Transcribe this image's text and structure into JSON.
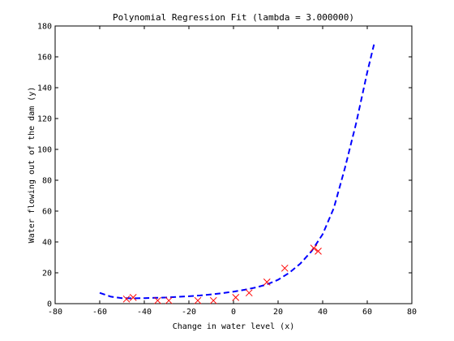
{
  "chart_data": {
    "type": "scatter",
    "title": "Polynomial Regression Fit (lambda = 3.000000)",
    "xlabel": "Change in water level (x)",
    "ylabel": "Water flowing out of the dam (y)",
    "xlim": [
      -80,
      80
    ],
    "ylim": [
      0,
      180
    ],
    "xticks": [
      -80,
      -60,
      -40,
      -20,
      0,
      20,
      40,
      60,
      80
    ],
    "yticks": [
      0,
      20,
      40,
      60,
      80,
      100,
      120,
      140,
      160,
      180
    ],
    "grid": false,
    "series": [
      {
        "kind": "scatter",
        "marker": "x",
        "color": "#ff0000",
        "x": [
          -48,
          -45,
          -34,
          -29,
          -16,
          -9,
          1,
          7,
          15,
          23,
          36,
          38
        ],
        "y": [
          3,
          4,
          2,
          2,
          2,
          2,
          4,
          7,
          14,
          23,
          36,
          34
        ]
      },
      {
        "kind": "line",
        "style": "dashed",
        "color": "#0000ff",
        "x": [
          -60,
          -55,
          -50,
          -45,
          -40,
          -35,
          -30,
          -25,
          -20,
          -15,
          -10,
          -5,
          0,
          5,
          10,
          15,
          20,
          25,
          30,
          35,
          40,
          45,
          50,
          55,
          60,
          63
        ],
        "y": [
          7,
          4.5,
          3.6,
          3.5,
          3.6,
          3.8,
          4,
          4.4,
          4.8,
          5.3,
          6,
          6.8,
          7.8,
          9,
          10.5,
          12.5,
          15.5,
          20,
          26,
          34,
          45,
          62,
          88,
          117,
          150,
          168
        ]
      }
    ]
  }
}
